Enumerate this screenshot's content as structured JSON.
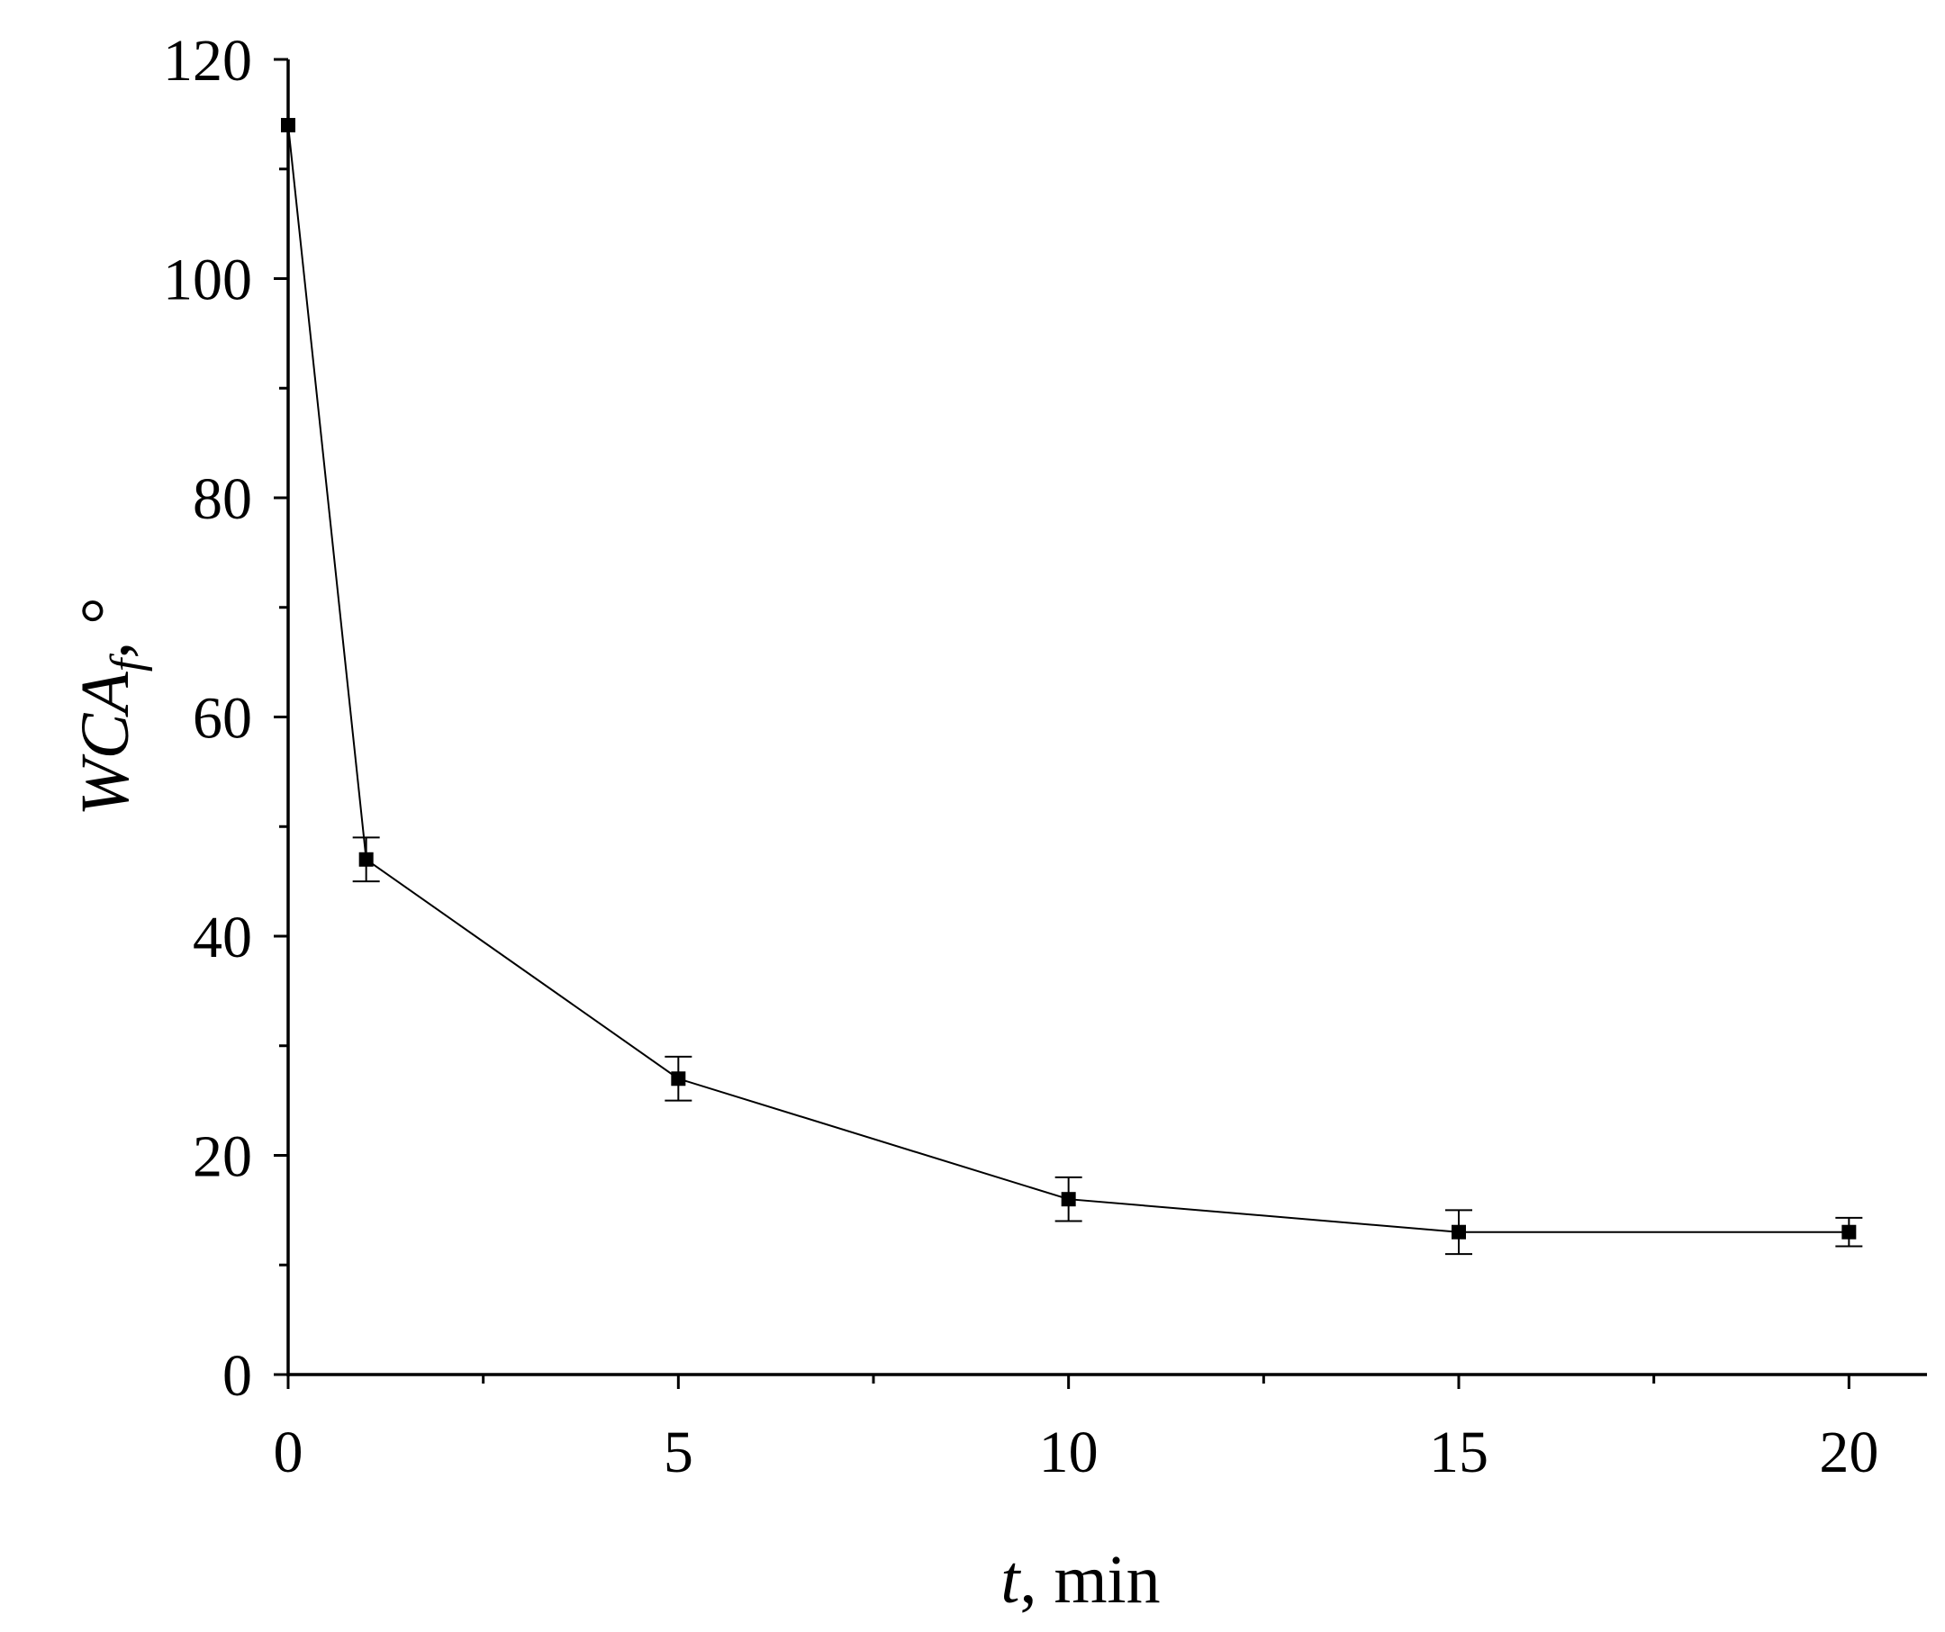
{
  "chart_data": {
    "type": "line",
    "title": "",
    "xlabel": {
      "var": "t",
      "rest": ", min"
    },
    "ylabel": {
      "var": "WCA",
      "sub": "f",
      "rest": ", °"
    },
    "xlim": [
      0,
      21
    ],
    "ylim": [
      0,
      120
    ],
    "x_ticks": [
      0,
      5,
      10,
      15,
      20
    ],
    "y_ticks": [
      0,
      20,
      40,
      60,
      80,
      100,
      120
    ],
    "x_minor_step": 2.5,
    "y_minor_step": 10,
    "grid": false,
    "legend": "none",
    "series": [
      {
        "x": [
          0,
          1,
          5,
          10,
          15,
          20
        ],
        "y": [
          114,
          47,
          27,
          16,
          13,
          13
        ],
        "error": [
          0,
          2,
          2,
          2,
          2,
          1.3
        ],
        "marker": "square",
        "color": "#000000"
      }
    ]
  }
}
